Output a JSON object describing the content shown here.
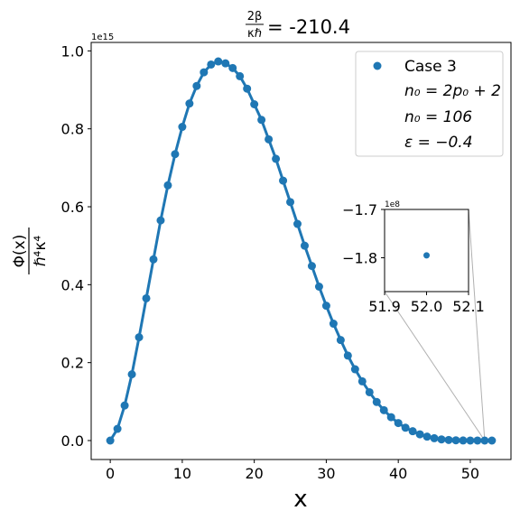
{
  "chart_data": {
    "type": "scatter",
    "title_pre": "",
    "title_frac_num": "2β",
    "title_frac_den": "κℏ",
    "title_value": "= -210.4",
    "xlabel": "x",
    "ylabel_num": "Φ(x)",
    "ylabel_den": "ℏ⁴κ⁴",
    "y_offset_text": "1e15",
    "xlim": [
      -2.65,
      55.65
    ],
    "ylim": [
      -0.04865,
      1.0217
    ],
    "xticks": [
      0,
      10,
      20,
      30,
      40,
      50
    ],
    "xtick_labels": [
      "0",
      "10",
      "20",
      "30",
      "40",
      "50"
    ],
    "yticks": [
      0.0,
      0.2,
      0.4,
      0.6,
      0.8,
      1.0
    ],
    "ytick_labels": [
      "0.0",
      "0.2",
      "0.4",
      "0.6",
      "0.8",
      "1.0"
    ],
    "series": [
      {
        "name": "Case 3",
        "color": "#1f77b4",
        "x": [
          0,
          1,
          2,
          3,
          4,
          5,
          6,
          7,
          8,
          9,
          10,
          11,
          12,
          13,
          14,
          15,
          16,
          17,
          18,
          19,
          20,
          21,
          22,
          23,
          24,
          25,
          26,
          27,
          28,
          29,
          30,
          31,
          32,
          33,
          34,
          35,
          36,
          37,
          38,
          39,
          40,
          41,
          42,
          43,
          44,
          45,
          46,
          47,
          48,
          49,
          50,
          51,
          52,
          53
        ],
        "y": [
          0.0,
          0.03,
          0.09,
          0.17,
          0.265,
          0.365,
          0.465,
          0.565,
          0.655,
          0.735,
          0.805,
          0.865,
          0.91,
          0.945,
          0.965,
          0.973,
          0.968,
          0.956,
          0.935,
          0.903,
          0.863,
          0.823,
          0.773,
          0.723,
          0.667,
          0.612,
          0.556,
          0.5,
          0.448,
          0.395,
          0.346,
          0.3,
          0.258,
          0.218,
          0.183,
          0.152,
          0.124,
          0.099,
          0.078,
          0.06,
          0.045,
          0.033,
          0.024,
          0.016,
          0.01,
          0.006,
          0.003,
          0.0015,
          0.0006,
          0.0002,
          0.0001,
          3e-05,
          0.0,
          0.0
        ]
      }
    ],
    "legend": {
      "placement": "top-right",
      "entries": [
        "Case 3",
        "n₀ = 2p₀ + 2",
        "n₀ = 106",
        "ε = −0.4"
      ]
    },
    "inset": {
      "xlim": [
        51.9,
        52.1
      ],
      "ylim": [
        -1.87,
        -1.7
      ],
      "xticks": [
        51.9,
        52.0,
        52.1
      ],
      "xtick_labels": [
        "51.9",
        "52.0",
        "52.1"
      ],
      "yticks": [
        -1.7,
        -1.8
      ],
      "ytick_labels": [
        "−1.7",
        "−1.8"
      ],
      "offset_text": "1e8",
      "point": {
        "x": 52.0,
        "y": -1.795
      }
    }
  }
}
